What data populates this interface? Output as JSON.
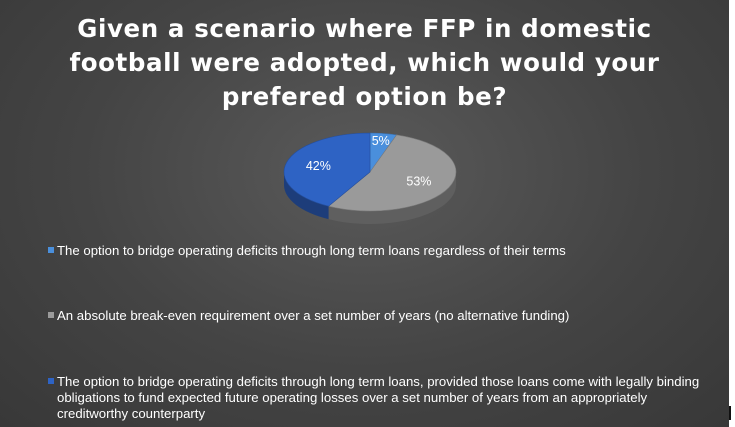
{
  "chart_data": {
    "type": "pie",
    "title": "Given a scenario where FFP in domestic football were adopted, which would your prefered option be?",
    "categories": [
      "The option to bridge operating deficits through long term loans regardless of their terms",
      "An absolute break-even requirement over a set number of years (no alternative funding)",
      "The option to bridge operating deficits through long term loans, provided those loans come with legally binding obligations to fund expected future operating losses over a set number of years from an appropriately creditworthy counterparty"
    ],
    "values": [
      5,
      53,
      42
    ],
    "data_labels": [
      "5%",
      "53%",
      "42%"
    ],
    "colors": [
      "#4a8fdc",
      "#9a9a9a",
      "#2e63c4"
    ],
    "legend_position": "bottom",
    "style": "3d"
  }
}
